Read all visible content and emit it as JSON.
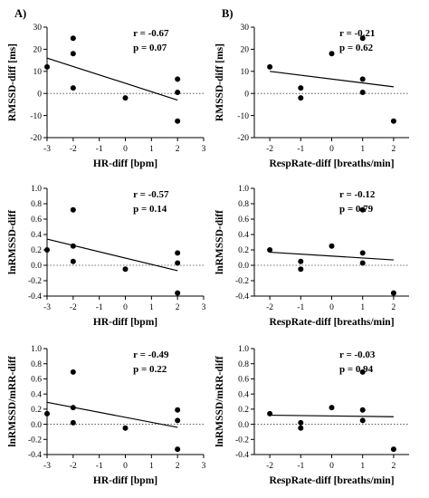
{
  "chart_data": [
    {
      "type": "scatter",
      "panel": "A)",
      "xlabel": "HR-diff [bpm]",
      "ylabel": "RMSSD-diff [ms]",
      "xlim": [
        -3,
        3
      ],
      "ylim": [
        -20,
        30
      ],
      "xticks": [
        -3,
        -2,
        -1,
        0,
        1,
        2,
        3
      ],
      "yticks": [
        -20,
        -10,
        0,
        10,
        20,
        30
      ],
      "points": [
        [
          -3,
          12
        ],
        [
          -2,
          25
        ],
        [
          -2,
          18
        ],
        [
          -2,
          2.5
        ],
        [
          0,
          -2
        ],
        [
          2,
          6.5
        ],
        [
          2,
          0.5
        ],
        [
          2,
          -12.5
        ]
      ],
      "regression": {
        "x": [
          -3,
          2
        ],
        "y": [
          16,
          -3
        ]
      },
      "reference_line": 0,
      "r_text": "r = -0.67",
      "p_text": "p = 0.07"
    },
    {
      "type": "scatter",
      "panel": "B)",
      "xlabel": "RespRate-diff [breaths/min]",
      "ylabel": "RMSSD-diff [ms]",
      "xlim": [
        -2.5,
        2.5
      ],
      "ylim": [
        -20,
        30
      ],
      "xticks": [
        -2,
        -1,
        0,
        1,
        2
      ],
      "yticks": [
        -20,
        -10,
        0,
        10,
        20,
        30
      ],
      "points": [
        [
          -2,
          12
        ],
        [
          -1,
          2.5
        ],
        [
          -1,
          -2
        ],
        [
          0,
          18
        ],
        [
          1,
          25
        ],
        [
          1,
          6.5
        ],
        [
          1,
          0.5
        ],
        [
          2,
          -12.5
        ]
      ],
      "regression": {
        "x": [
          -2,
          2
        ],
        "y": [
          10,
          3
        ]
      },
      "reference_line": 0,
      "r_text": "r = -0.21",
      "p_text": "p = 0.62"
    },
    {
      "type": "scatter",
      "panel": "",
      "xlabel": "HR-diff [bpm]",
      "ylabel": "lnRMSSD-diff",
      "xlim": [
        -3,
        3
      ],
      "ylim": [
        -0.4,
        1.0
      ],
      "xticks": [
        -3,
        -2,
        -1,
        0,
        1,
        2,
        3
      ],
      "yticks": [
        -0.4,
        -0.2,
        0.0,
        0.2,
        0.4,
        0.6,
        0.8,
        1.0
      ],
      "points": [
        [
          -3,
          0.2
        ],
        [
          -2,
          0.72
        ],
        [
          -2,
          0.25
        ],
        [
          -2,
          0.05
        ],
        [
          0,
          -0.05
        ],
        [
          2,
          0.16
        ],
        [
          2,
          0.03
        ],
        [
          2,
          -0.36
        ]
      ],
      "regression": {
        "x": [
          -3,
          2
        ],
        "y": [
          0.34,
          -0.07
        ]
      },
      "reference_line": 0,
      "r_text": "r = -0.57",
      "p_text": "p = 0.14"
    },
    {
      "type": "scatter",
      "panel": "",
      "xlabel": "RespRate-diff [breaths/min]",
      "ylabel": "lnRMSSD-diff",
      "xlim": [
        -2.5,
        2.5
      ],
      "ylim": [
        -0.4,
        1.0
      ],
      "xticks": [
        -2,
        -1,
        0,
        1,
        2
      ],
      "yticks": [
        -0.4,
        -0.2,
        0.0,
        0.2,
        0.4,
        0.6,
        0.8,
        1.0
      ],
      "points": [
        [
          -2,
          0.2
        ],
        [
          -1,
          0.05
        ],
        [
          -1,
          -0.05
        ],
        [
          0,
          0.25
        ],
        [
          1,
          0.72
        ],
        [
          1,
          0.16
        ],
        [
          1,
          0.03
        ],
        [
          2,
          -0.36
        ]
      ],
      "regression": {
        "x": [
          -2,
          2
        ],
        "y": [
          0.17,
          0.07
        ]
      },
      "reference_line": 0,
      "r_text": "r = -0.12",
      "p_text": "p = 0.79"
    },
    {
      "type": "scatter",
      "panel": "",
      "xlabel": "HR-diff [bpm]",
      "ylabel": "lnRMSSD/mRR-diff",
      "xlim": [
        -3,
        3
      ],
      "ylim": [
        -0.4,
        1.0
      ],
      "xticks": [
        -3,
        -2,
        -1,
        0,
        1,
        2,
        3
      ],
      "yticks": [
        -0.4,
        -0.2,
        0.0,
        0.2,
        0.4,
        0.6,
        0.8,
        1.0
      ],
      "points": [
        [
          -3,
          0.14
        ],
        [
          -2,
          0.69
        ],
        [
          -2,
          0.22
        ],
        [
          -2,
          0.02
        ],
        [
          0,
          -0.05
        ],
        [
          2,
          0.19
        ],
        [
          2,
          0.05
        ],
        [
          2,
          -0.33
        ]
      ],
      "regression": {
        "x": [
          -3,
          2
        ],
        "y": [
          0.29,
          -0.04
        ]
      },
      "reference_line": 0,
      "r_text": "r = -0.49",
      "p_text": "p = 0.22"
    },
    {
      "type": "scatter",
      "panel": "",
      "xlabel": "RespRate-diff [breaths/min]",
      "ylabel": "lnRMSSD/mRR-diff",
      "xlim": [
        -2.5,
        2.5
      ],
      "ylim": [
        -0.4,
        1.0
      ],
      "xticks": [
        -2,
        -1,
        0,
        1,
        2
      ],
      "yticks": [
        -0.4,
        -0.2,
        0.0,
        0.2,
        0.4,
        0.6,
        0.8,
        1.0
      ],
      "points": [
        [
          -2,
          0.14
        ],
        [
          -1,
          0.02
        ],
        [
          -1,
          -0.05
        ],
        [
          0,
          0.22
        ],
        [
          1,
          0.69
        ],
        [
          1,
          0.19
        ],
        [
          1,
          0.05
        ],
        [
          2,
          -0.33
        ]
      ],
      "regression": {
        "x": [
          -2,
          2
        ],
        "y": [
          0.12,
          0.1
        ]
      },
      "reference_line": 0,
      "r_text": "r = -0.03",
      "p_text": "p = 0.94"
    }
  ]
}
